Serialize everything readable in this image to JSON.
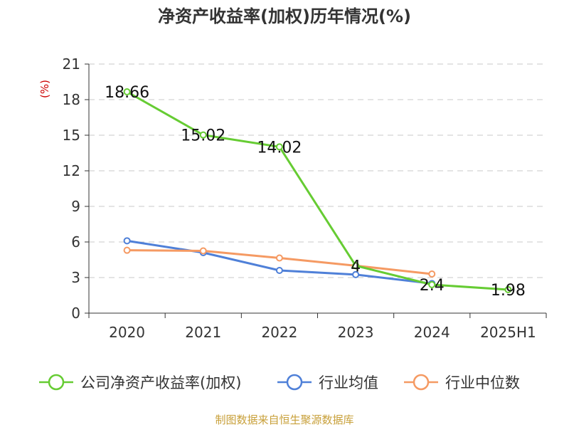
{
  "chart_data": {
    "type": "line",
    "title": "净资产收益率(加权)历年情况(%)",
    "y_unit": "(%)",
    "categories": [
      "2020",
      "2021",
      "2022",
      "2023",
      "2024",
      "2025H1"
    ],
    "ylim": [
      0,
      21
    ],
    "y_ticks": [
      0,
      3,
      6,
      9,
      12,
      15,
      18,
      21
    ],
    "grid": true,
    "legend_position": "bottom",
    "series": [
      {
        "name": "公司净资产收益率(加权)",
        "color": "#66cc33",
        "values": [
          18.66,
          15.02,
          14.02,
          4,
          2.4,
          1.98
        ],
        "labels": [
          "18.66",
          "15.02",
          "14.02",
          "4",
          "2.4",
          "1.98"
        ]
      },
      {
        "name": "行业均值",
        "color": "#4f80d8",
        "values": [
          6.1,
          5.1,
          3.6,
          3.25,
          2.5,
          null
        ]
      },
      {
        "name": "行业中位数",
        "color": "#f59a63",
        "values": [
          5.3,
          5.25,
          4.65,
          4.0,
          3.3,
          null
        ]
      }
    ]
  },
  "footer": {
    "source": "制图数据来自恒生聚源数据库"
  }
}
